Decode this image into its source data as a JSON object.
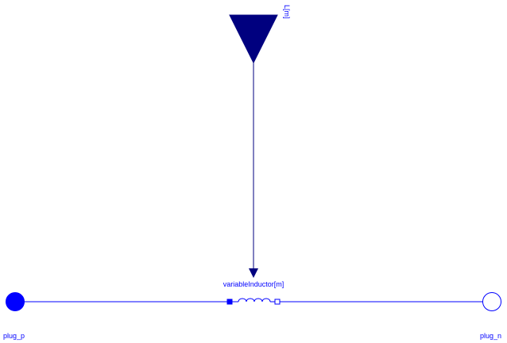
{
  "diagram": {
    "input": {
      "label": "L[m]"
    },
    "component": {
      "label": "variableInductor[m]"
    },
    "ports": {
      "positive": {
        "label": "plug_p"
      },
      "negative": {
        "label": "plug_n"
      }
    }
  },
  "colors": {
    "wire": "#0000ff",
    "signal": "#00007f",
    "port_fill": "#0000ff",
    "background": "#ffffff"
  }
}
